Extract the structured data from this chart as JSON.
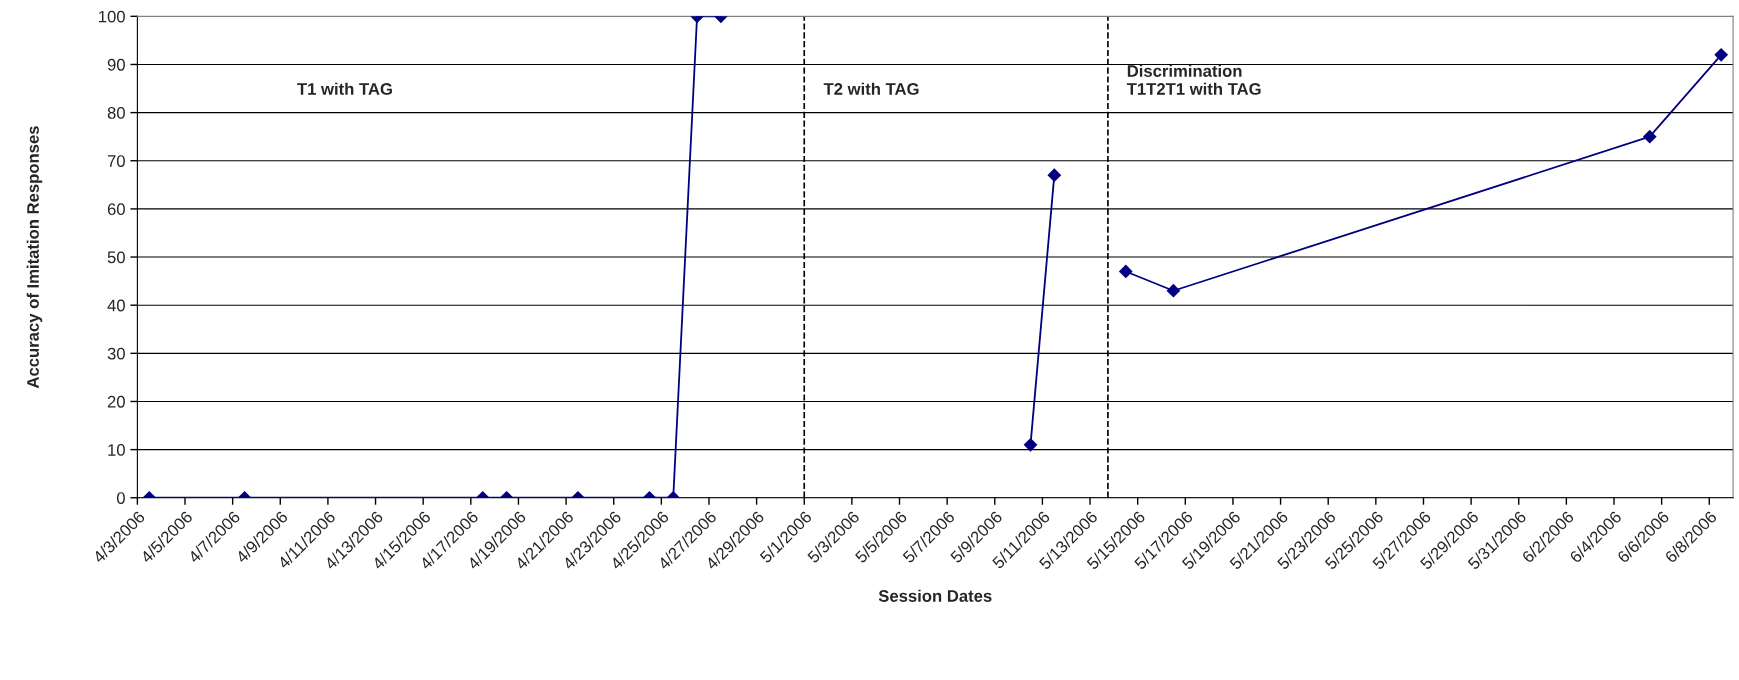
{
  "chart_data": {
    "type": "line",
    "xlabel": "Session Dates",
    "ylabel": "Accuracy of Imitation Responses",
    "annotations": [
      "T1 with TAG",
      "T2 with TAG",
      "Discrimination\nT1T2T1 with TAG"
    ],
    "series": [
      {
        "color": "#000080",
        "x": [
          "2006-04-03T12:00",
          "2006-04-07T12:00",
          "2006-04-17T12:00",
          "2006-04-18T12:00",
          "2006-04-21T12:00",
          "2006-04-24T12:00",
          "2006-04-25T12:00",
          "2006-04-26T12:00",
          "2006-04-27T12:00"
        ],
        "values": [
          0,
          0,
          0,
          0,
          0,
          0,
          0,
          100,
          100
        ]
      },
      {
        "color": "#000080",
        "x": [
          "2006-05-10T12:00",
          "2006-05-11T12:00"
        ],
        "values": [
          11,
          67
        ]
      },
      {
        "color": "#000080",
        "x": [
          "2006-05-14T12:00",
          "2006-05-16T12:00",
          "2006-06-05T12:00",
          "2006-06-08T12:00"
        ],
        "values": [
          47,
          43,
          75,
          92
        ]
      }
    ],
    "ref_lines": [
      {
        "axis": "x",
        "value": "2006-05-01",
        "color": "#000000",
        "line_style": "dashed"
      },
      {
        "axis": "x",
        "value": "2006-05-13T18:00",
        "color": "#000000",
        "line_style": "dashed"
      }
    ],
    "xlim": [
      "2006-04-03",
      "2006-06-09"
    ],
    "xticks": [
      {
        "value": "2006-04-03",
        "label": "4/3/2006"
      },
      {
        "value": "2006-04-05",
        "label": "4/5/2006"
      },
      {
        "value": "2006-04-07",
        "label": "4/7/2006"
      },
      {
        "value": "2006-04-09",
        "label": "4/9/2006"
      },
      {
        "value": "2006-04-11",
        "label": "4/11/2006"
      },
      {
        "value": "2006-04-13",
        "label": "4/13/2006"
      },
      {
        "value": "2006-04-15",
        "label": "4/15/2006"
      },
      {
        "value": "2006-04-17",
        "label": "4/17/2006"
      },
      {
        "value": "2006-04-19",
        "label": "4/19/2006"
      },
      {
        "value": "2006-04-21",
        "label": "4/21/2006"
      },
      {
        "value": "2006-04-23",
        "label": "4/23/2006"
      },
      {
        "value": "2006-04-25",
        "label": "4/25/2006"
      },
      {
        "value": "2006-04-27",
        "label": "4/27/2006"
      },
      {
        "value": "2006-04-29",
        "label": "4/29/2006"
      },
      {
        "value": "2006-05-01",
        "label": "5/1/2006"
      },
      {
        "value": "2006-05-03",
        "label": "5/3/2006"
      },
      {
        "value": "2006-05-05",
        "label": "5/5/2006"
      },
      {
        "value": "2006-05-07",
        "label": "5/7/2006"
      },
      {
        "value": "2006-05-09",
        "label": "5/9/2006"
      },
      {
        "value": "2006-05-11",
        "label": "5/11/2006"
      },
      {
        "value": "2006-05-13",
        "label": "5/13/2006"
      },
      {
        "value": "2006-05-15",
        "label": "5/15/2006"
      },
      {
        "value": "2006-05-17",
        "label": "5/17/2006"
      },
      {
        "value": "2006-05-19",
        "label": "5/19/2006"
      },
      {
        "value": "2006-05-21",
        "label": "5/21/2006"
      },
      {
        "value": "2006-05-23",
        "label": "5/23/2006"
      },
      {
        "value": "2006-05-25",
        "label": "5/25/2006"
      },
      {
        "value": "2006-05-27",
        "label": "5/27/2006"
      },
      {
        "value": "2006-05-29",
        "label": "5/29/2006"
      },
      {
        "value": "2006-05-31",
        "label": "5/31/2006"
      },
      {
        "value": "2006-06-02",
        "label": "6/2/2006"
      },
      {
        "value": "2006-06-04",
        "label": "6/4/2006"
      },
      {
        "value": "2006-06-06",
        "label": "6/6/2006"
      },
      {
        "value": "2006-06-08",
        "label": "6/8/2006"
      }
    ],
    "ylim": [
      0,
      100
    ],
    "yticks": [
      0,
      10,
      20,
      30,
      40,
      50,
      60,
      70,
      80,
      90,
      100
    ],
    "grid": "y",
    "legend": false,
    "marker": "diamond",
    "line_style": "solid"
  }
}
